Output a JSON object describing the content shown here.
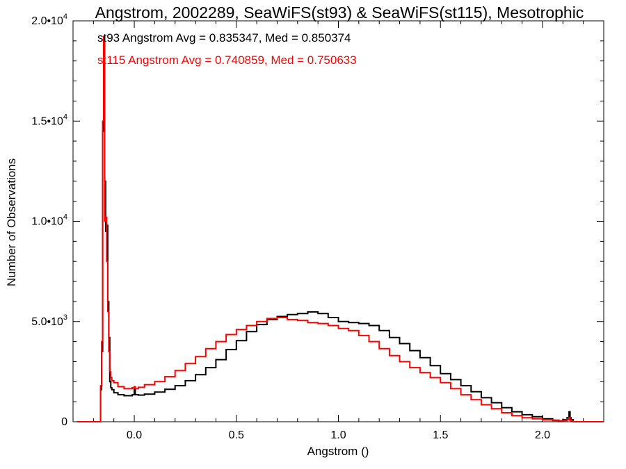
{
  "chart_data": {
    "type": "line",
    "title": "Angstrom, 2002289, SeaWiFS(st93) & SeaWiFS(st115), Mesotrophic",
    "xlabel": "Angstrom ()",
    "ylabel": "Number of Observations",
    "xlim": [
      -0.3,
      2.3
    ],
    "ylim": [
      0,
      20000
    ],
    "x_ticks": [
      0.0,
      0.5,
      1.0,
      1.5,
      2.0
    ],
    "x_tick_labels": [
      "0.0",
      "0.5",
      "1.0",
      "1.5",
      "2.0"
    ],
    "y_ticks": [
      {
        "value": 0,
        "mantissa": "0",
        "exp": ""
      },
      {
        "value": 5000,
        "mantissa": "5.0•10",
        "exp": "3"
      },
      {
        "value": 10000,
        "mantissa": "1.0•10",
        "exp": "4"
      },
      {
        "value": 15000,
        "mantissa": "1.5•10",
        "exp": "4"
      },
      {
        "value": 20000,
        "mantissa": "2.0•10",
        "exp": "4"
      }
    ],
    "grid": false,
    "step": true,
    "series": [
      {
        "name": "st93",
        "color": "#000000",
        "x": [
          -0.28,
          -0.17,
          -0.165,
          -0.16,
          -0.155,
          -0.15,
          -0.145,
          -0.14,
          -0.135,
          -0.13,
          -0.125,
          -0.12,
          -0.115,
          -0.11,
          -0.1,
          -0.08,
          -0.05,
          -0.01,
          0,
          0.005,
          0.02,
          0.05,
          0.1,
          0.15,
          0.2,
          0.25,
          0.3,
          0.35,
          0.4,
          0.45,
          0.5,
          0.55,
          0.6,
          0.65,
          0.7,
          0.75,
          0.8,
          0.85,
          0.9,
          0.95,
          1.0,
          1.05,
          1.1,
          1.15,
          1.2,
          1.25,
          1.3,
          1.35,
          1.4,
          1.45,
          1.5,
          1.55,
          1.6,
          1.65,
          1.7,
          1.75,
          1.8,
          1.85,
          1.9,
          1.95,
          2.0,
          2.05,
          2.08,
          2.1,
          2.12,
          2.13,
          2.135,
          2.14,
          2.15,
          2.17,
          2.3
        ],
        "y": [
          0,
          0,
          1600,
          3500,
          14500,
          19000,
          12000,
          9500,
          9800,
          6000,
          4200,
          2000,
          1700,
          1600,
          1450,
          1350,
          1300,
          1350,
          1700,
          1350,
          1330,
          1380,
          1480,
          1620,
          1800,
          2050,
          2350,
          2700,
          3100,
          3600,
          4050,
          4500,
          4850,
          5100,
          5250,
          5350,
          5400,
          5480,
          5400,
          5200,
          5000,
          4950,
          4900,
          4800,
          4550,
          4200,
          3900,
          3550,
          3200,
          2800,
          2400,
          2100,
          1800,
          1500,
          1200,
          950,
          700,
          500,
          350,
          250,
          150,
          80,
          50,
          100,
          200,
          500,
          200,
          100,
          0,
          0,
          0
        ],
        "value_label": "st93 Angstrom Avg = 0.835347, Med = 0.850374"
      },
      {
        "name": "st115",
        "color": "#ff0000",
        "x": [
          -0.28,
          -0.17,
          -0.165,
          -0.16,
          -0.155,
          -0.15,
          -0.145,
          -0.14,
          -0.135,
          -0.13,
          -0.125,
          -0.12,
          -0.115,
          -0.11,
          -0.1,
          -0.08,
          -0.05,
          -0.01,
          0,
          0.005,
          0.02,
          0.05,
          0.1,
          0.15,
          0.2,
          0.25,
          0.3,
          0.35,
          0.4,
          0.45,
          0.5,
          0.55,
          0.6,
          0.65,
          0.7,
          0.75,
          0.8,
          0.85,
          0.9,
          0.95,
          1.0,
          1.05,
          1.1,
          1.15,
          1.2,
          1.25,
          1.3,
          1.35,
          1.4,
          1.45,
          1.5,
          1.55,
          1.6,
          1.65,
          1.7,
          1.75,
          1.8,
          1.85,
          1.9,
          1.95,
          2.0,
          2.05,
          2.08,
          2.1,
          2.12,
          2.13,
          2.135,
          2.14,
          2.15,
          2.17,
          2.3
        ],
        "y": [
          0,
          0,
          1800,
          4000,
          15000,
          19200,
          10000,
          10200,
          8000,
          5500,
          3500,
          2500,
          2200,
          2050,
          1950,
          1750,
          1650,
          1700,
          1750,
          1650,
          1720,
          1850,
          2000,
          2250,
          2550,
          2900,
          3250,
          3650,
          4000,
          4350,
          4600,
          4800,
          5000,
          5150,
          5200,
          5100,
          5050,
          4950,
          4900,
          4800,
          4650,
          4550,
          4300,
          4000,
          3650,
          3300,
          3000,
          2700,
          2450,
          2200,
          1950,
          1650,
          1350,
          1100,
          850,
          650,
          450,
          300,
          200,
          150,
          100,
          60,
          40,
          60,
          100,
          200,
          80,
          40,
          0,
          0,
          0
        ],
        "value_label": "st115 Angstrom Avg = 0.740859, Med = 0.750633"
      }
    ]
  }
}
